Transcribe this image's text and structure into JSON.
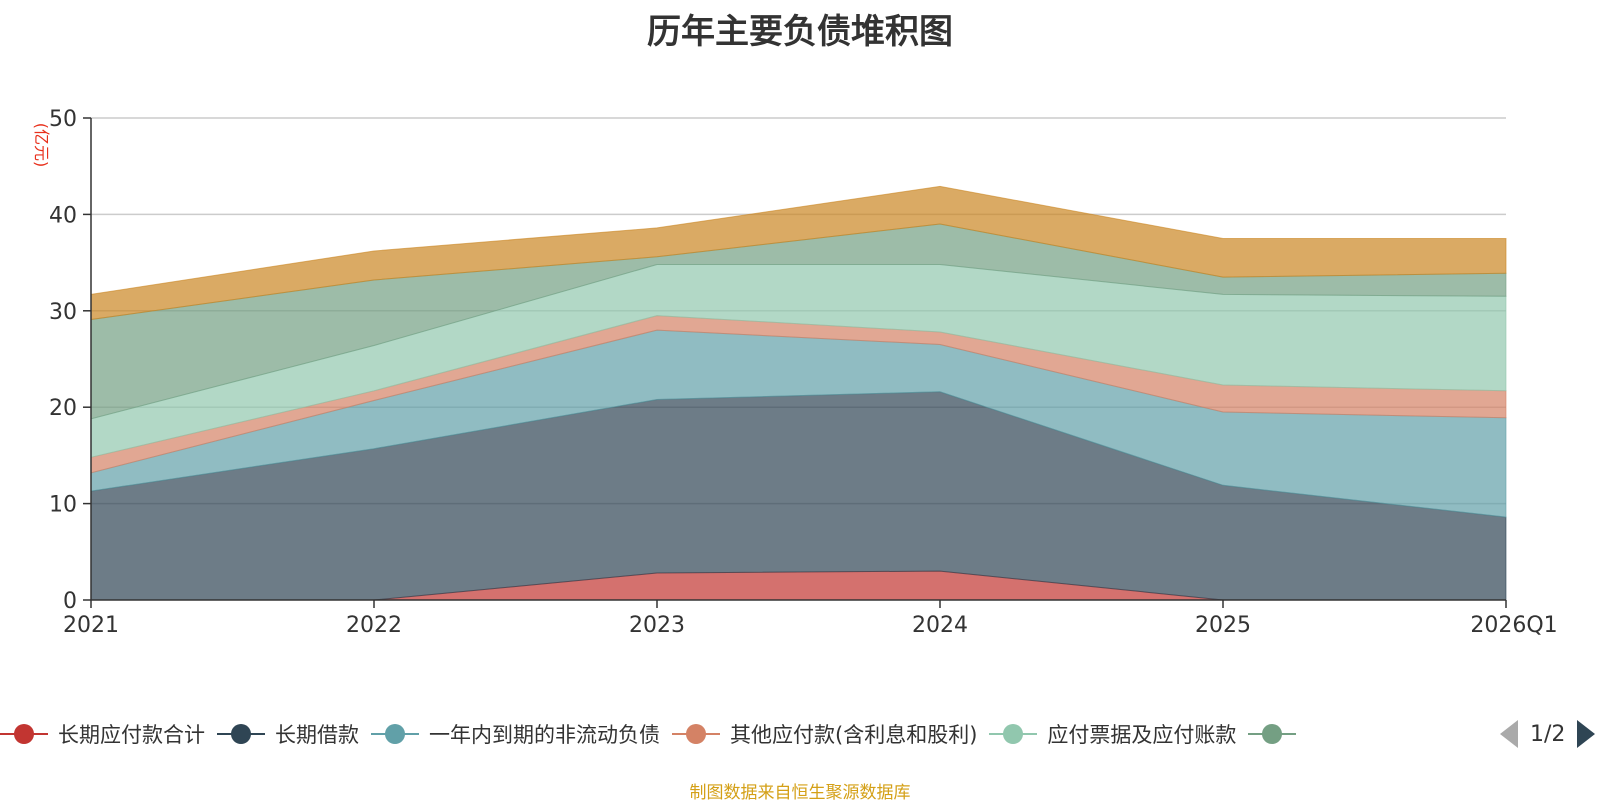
{
  "chart_data": {
    "type": "area",
    "stacked": true,
    "title": "历年主要负债堆积图",
    "ylabel": "(亿元)",
    "xlabel": "",
    "ylim": [
      0,
      50
    ],
    "yticks": [
      0,
      10,
      20,
      30,
      40,
      50
    ],
    "categories": [
      "2021",
      "2022",
      "2023",
      "2024",
      "2025",
      "2026Q1"
    ],
    "series": [
      {
        "name": "长期应付款合计",
        "color": "#c23531",
        "values": [
          0,
          0,
          2.8,
          3.0,
          0,
          0
        ]
      },
      {
        "name": "长期借款",
        "color": "#2f4554",
        "values": [
          11.3,
          15.7,
          18.0,
          18.6,
          11.9,
          8.6
        ]
      },
      {
        "name": "一年内到期的非流动负债",
        "color": "#61a0a8",
        "values": [
          1.9,
          5.0,
          7.2,
          4.9,
          7.6,
          10.3
        ]
      },
      {
        "name": "其他应付款(含利息和股利)",
        "color": "#d48265",
        "values": [
          1.6,
          1.0,
          1.5,
          1.3,
          2.8,
          2.8
        ]
      },
      {
        "name": "应付票据及应付账款",
        "color": "#91c7ae",
        "values": [
          4.0,
          4.7,
          5.3,
          7.0,
          9.4,
          9.8
        ]
      },
      {
        "name": "",
        "color": "#749f83",
        "values": [
          10.3,
          6.8,
          0.8,
          4.2,
          1.8,
          2.4
        ]
      },
      {
        "name": "",
        "color": "#ca8622",
        "values": [
          2.6,
          3.0,
          3.0,
          3.9,
          4.0,
          3.6
        ]
      }
    ],
    "legend": {
      "items": [
        "长期应付款合计",
        "长期借款",
        "一年内到期的非流动负债",
        "其他应付款(含利息和股利)",
        "应付票据及应付账款"
      ],
      "page": "1/2"
    },
    "source": "制图数据来自恒生聚源数据库"
  }
}
